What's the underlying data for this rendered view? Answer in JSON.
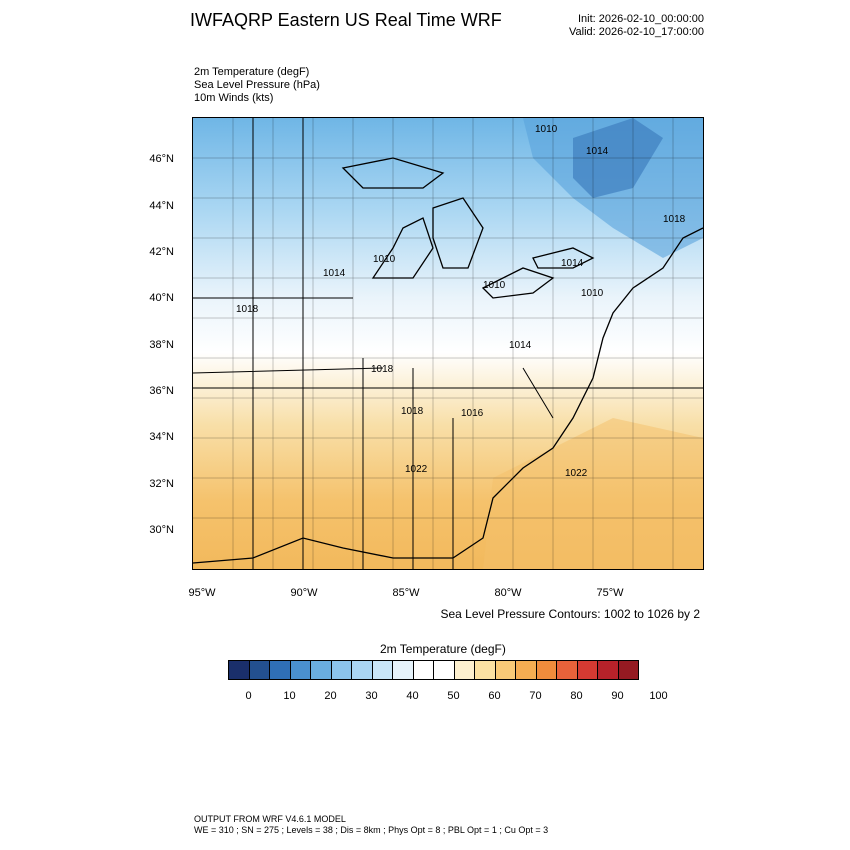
{
  "header": {
    "title": "IWFAQRP Eastern US Real Time WRF",
    "init": "Init: 2026-02-10_00:00:00",
    "valid": "Valid: 2026-02-10_17:00:00"
  },
  "fields": {
    "line1": "2m Temperature   (degF)",
    "line2": "Sea Level Pressure   (hPa)",
    "line3": "10m Winds   (kts)"
  },
  "axes": {
    "lat": [
      "46°N",
      "44°N",
      "42°N",
      "40°N",
      "38°N",
      "36°N",
      "34°N",
      "32°N",
      "30°N"
    ],
    "lon": [
      "95°W",
      "90°W",
      "85°W",
      "80°W",
      "75°W"
    ]
  },
  "contours": {
    "labels": [
      "1010",
      "1014",
      "1018",
      "1010",
      "1014",
      "1018",
      "1014",
      "1010",
      "1014",
      "1010",
      "1018",
      "1016",
      "1018",
      "1022",
      "1022"
    ]
  },
  "slp_caption": "Sea Level Pressure Contours: 1002 to 1026 by 2",
  "colorbar": {
    "title": "2m Temperature  (degF)",
    "colors": [
      "#1a2f6b",
      "#23508f",
      "#2f6fb7",
      "#4a90cf",
      "#6aaee0",
      "#8cc4ec",
      "#abd6f3",
      "#c9e6f8",
      "#e6f3fb",
      "#ffffff",
      "#ffffff",
      "#fdf0cf",
      "#fbe1a2",
      "#f9ca77",
      "#f5ad52",
      "#f08c3c",
      "#e8623a",
      "#d63a32",
      "#b7222a",
      "#951a22"
    ],
    "labels": [
      "0",
      "10",
      "20",
      "30",
      "40",
      "50",
      "60",
      "70",
      "80",
      "90",
      "100"
    ]
  },
  "footer": {
    "line1": "OUTPUT FROM WRF V4.6.1 MODEL",
    "line2": "WE = 310 ; SN = 275 ; Levels = 38 ; Dis = 8km ; Phys Opt = 8 ; PBL Opt = 1 ; Cu Opt = 3"
  }
}
